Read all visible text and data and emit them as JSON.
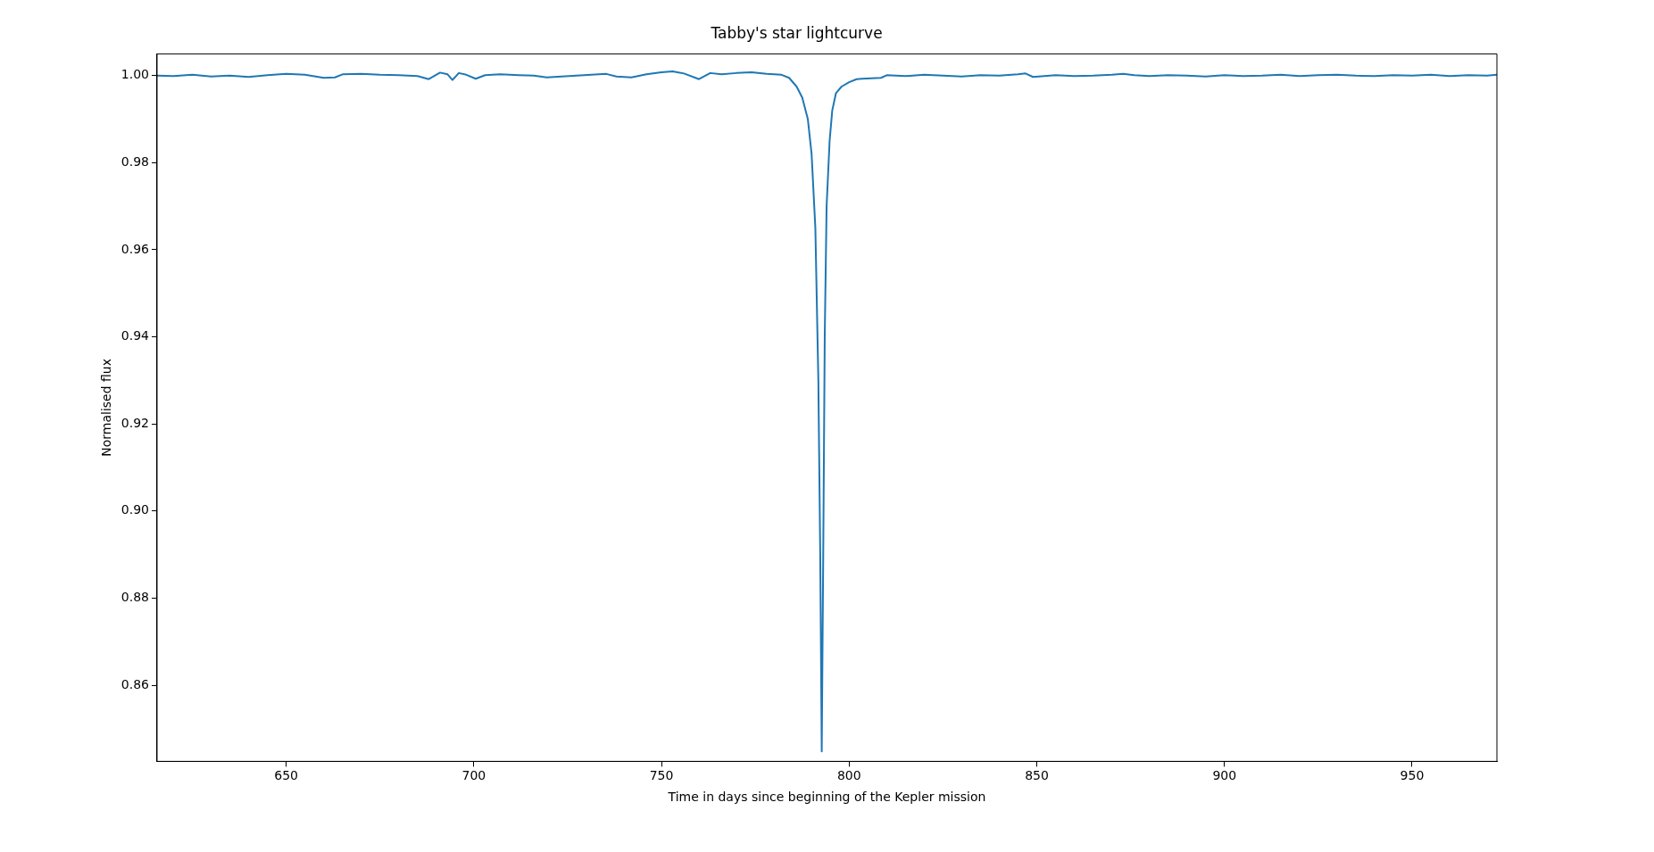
{
  "chart_data": {
    "type": "line",
    "title": "Tabby's star lightcurve",
    "xlabel": "Time in days since beginning of the Kepler mission",
    "ylabel": "Normalised flux",
    "xlim": [
      615.6,
      972.6
    ],
    "ylim": [
      0.8425,
      1.005
    ],
    "xticks": [
      650,
      700,
      750,
      800,
      850,
      900,
      950
    ],
    "yticks": [
      {
        "value": 0.86,
        "label": "0.86"
      },
      {
        "value": 0.88,
        "label": "0.88"
      },
      {
        "value": 0.9,
        "label": "0.90"
      },
      {
        "value": 0.92,
        "label": "0.92"
      },
      {
        "value": 0.94,
        "label": "0.94"
      },
      {
        "value": 0.96,
        "label": "0.96"
      },
      {
        "value": 0.98,
        "label": "0.98"
      },
      {
        "value": 1,
        "label": "1.00"
      }
    ],
    "marker": "none",
    "line_style": "solid",
    "grid": false,
    "legend": false,
    "series": [
      {
        "color": "#1f77b4",
        "x": [
          615.6,
          620,
          625,
          630,
          635,
          640,
          645,
          650,
          655,
          660,
          663,
          665,
          670,
          675,
          680,
          685,
          688,
          691,
          693,
          694.3,
          696,
          698,
          700.5,
          703,
          707,
          712,
          716,
          719.4,
          735.3,
          738,
          742,
          746,
          750,
          753,
          756,
          760,
          763,
          766,
          770,
          774,
          778,
          782,
          784,
          786,
          787.5,
          789,
          790,
          791,
          791.8,
          792.3,
          792.7,
          793.1,
          793.5,
          794,
          794.8,
          795.5,
          796.5,
          798,
          800,
          802,
          803.5,
          808.5,
          810,
          815,
          820,
          825,
          830,
          835,
          840,
          845,
          847,
          849,
          855,
          860,
          865,
          870,
          873,
          876,
          880,
          885,
          890,
          895,
          900,
          905,
          910,
          915,
          920,
          925,
          930,
          935,
          940,
          945,
          950,
          955,
          960,
          965,
          970,
          972.6
        ],
        "values": [
          1.0,
          0.9999,
          1.0002,
          0.9998,
          1.0,
          0.9997,
          1.0001,
          1.0004,
          1.0002,
          0.9995,
          0.9996,
          1.0003,
          1.0004,
          1.0002,
          1.0001,
          0.9999,
          0.9992,
          1.0007,
          1.0003,
          0.999,
          1.0006,
          1.0002,
          0.9993,
          1.0001,
          1.0003,
          1.0001,
          1.0,
          0.9996,
          1.0004,
          0.9998,
          0.9996,
          1.0003,
          1.0008,
          1.001,
          1.0005,
          0.9992,
          1.0006,
          1.0003,
          1.0006,
          1.0008,
          1.0004,
          1.0002,
          0.9995,
          0.9975,
          0.995,
          0.99,
          0.982,
          0.965,
          0.93,
          0.89,
          0.8448,
          0.89,
          0.94,
          0.97,
          0.985,
          0.992,
          0.996,
          0.9975,
          0.9985,
          0.9992,
          0.9993,
          0.9995,
          1.0001,
          0.9999,
          1.0002,
          1.0,
          0.9998,
          1.0001,
          1.0,
          1.0003,
          1.0005,
          0.9997,
          1.0001,
          0.9999,
          1.0,
          1.0002,
          1.0004,
          1.0001,
          0.9999,
          1.0001,
          1.0,
          0.9998,
          1.0001,
          0.9999,
          1.0,
          1.0002,
          0.9999,
          1.0001,
          1.0002,
          1.0,
          0.9999,
          1.0001,
          1.0,
          1.0002,
          0.9999,
          1.0001,
          1.0,
          1.0002
        ]
      }
    ]
  }
}
